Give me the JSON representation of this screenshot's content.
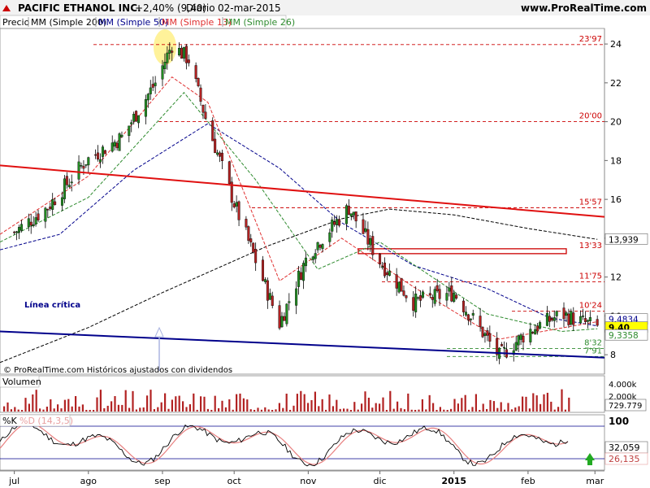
{
  "header": {
    "ticker": "PACIFIC ETHANOL INC.",
    "change": "+2,40% (9,40)",
    "period": "Diario",
    "date": "02-mar-2015",
    "site": "www.ProRealTime.com"
  },
  "legend": {
    "price": "Precio",
    "ma200": "MM (Simple 200)",
    "ma50": "MM (Simple 50)",
    "ma13": "MM (Simple 13)",
    "ma26": "MM (Simple 26)"
  },
  "colors": {
    "price_up": "#228b22",
    "price_down": "#b22222",
    "ma200": "#000000",
    "ma50": "#00008b",
    "ma13": "#e03030",
    "ma26": "#2e8b2e",
    "support_line": "#00008b",
    "resistance_line": "#e01010",
    "level_red": "#cc0000",
    "level_green": "#2e8b2e",
    "volume": "#b22222",
    "highlight": "#fff29a"
  },
  "footer": {
    "copyright": "© ProRealTime.com Históricos ajustados con dividendos"
  },
  "annotations": {
    "critical_line": "Línea crítica"
  },
  "volume_panel": {
    "title": "Volumen",
    "axis_labels": [
      "4.000k",
      "2.000k"
    ],
    "last_value": "729.779"
  },
  "stoch_panel": {
    "k_label": "%K",
    "d_label": "%D (14,3,5)",
    "axis_top": "100",
    "k_value": "32,059",
    "d_value": "26,135"
  },
  "chart_data": {
    "type": "candlestick",
    "y_axis": {
      "ticks": [
        8,
        10,
        12,
        14,
        16,
        18,
        20,
        22,
        24
      ],
      "tick_labels": [
        "8",
        "10",
        "12",
        "14",
        "16",
        "18",
        "20",
        "22",
        "24"
      ],
      "range": [
        7.0,
        24.8
      ]
    },
    "x_axis": {
      "labels": [
        "jul",
        "ago",
        "sep",
        "oct",
        "nov",
        "dic",
        "2015",
        "feb",
        "mar"
      ],
      "range": [
        "2014-06-25",
        "2015-03-05"
      ]
    },
    "levels": [
      {
        "label": "23'97",
        "value": 23.97,
        "color": "red"
      },
      {
        "label": "20'00",
        "value": 20.0,
        "color": "red"
      },
      {
        "label": "15'57",
        "value": 15.57,
        "color": "red"
      },
      {
        "label": "13'33",
        "value": 13.33,
        "color": "red"
      },
      {
        "label": "11'75",
        "value": 11.75,
        "color": "red"
      },
      {
        "label": "10'24",
        "value": 10.24,
        "color": "red"
      },
      {
        "label": "8'32",
        "value": 8.32,
        "color": "green"
      },
      {
        "label": "7'91",
        "value": 7.91,
        "color": "green"
      }
    ],
    "right_labels": [
      {
        "label": "13,939",
        "value": 13.939
      },
      {
        "label": "9,4834",
        "value": 9.4834
      },
      {
        "label": "9,40",
        "value": 9.4
      },
      {
        "label": "9,3358",
        "value": 9.3358
      }
    ],
    "prices": [
      {
        "date": "2014-07-01",
        "close": 14.3
      },
      {
        "date": "2014-07-15",
        "close": 15.6
      },
      {
        "date": "2014-07-31",
        "close": 18.0
      },
      {
        "date": "2014-08-15",
        "close": 19.2
      },
      {
        "date": "2014-08-29",
        "close": 22.0
      },
      {
        "date": "2014-09-05",
        "close": 23.97
      },
      {
        "date": "2014-09-12",
        "close": 23.2
      },
      {
        "date": "2014-09-19",
        "close": 20.2
      },
      {
        "date": "2014-10-01",
        "close": 15.8
      },
      {
        "date": "2014-10-15",
        "close": 11.2
      },
      {
        "date": "2014-10-20",
        "close": 9.6
      },
      {
        "date": "2014-11-01",
        "close": 13.2
      },
      {
        "date": "2014-11-18",
        "close": 15.57
      },
      {
        "date": "2014-12-01",
        "close": 12.8
      },
      {
        "date": "2014-12-15",
        "close": 10.7
      },
      {
        "date": "2015-01-01",
        "close": 11.2
      },
      {
        "date": "2015-01-15",
        "close": 8.8
      },
      {
        "date": "2015-01-20",
        "close": 7.91
      },
      {
        "date": "2015-02-01",
        "close": 9.2
      },
      {
        "date": "2015-02-15",
        "close": 10.1
      },
      {
        "date": "2015-03-02",
        "close": 9.4
      }
    ],
    "ma200": [
      {
        "date": "2014-06-25",
        "value": 7.6
      },
      {
        "date": "2014-08-01",
        "value": 9.4
      },
      {
        "date": "2014-09-01",
        "value": 11.2
      },
      {
        "date": "2014-10-15",
        "value": 13.6
      },
      {
        "date": "2014-11-15",
        "value": 15.0
      },
      {
        "date": "2014-12-05",
        "value": 15.5
      },
      {
        "date": "2015-01-01",
        "value": 15.2
      },
      {
        "date": "2015-02-01",
        "value": 14.5
      },
      {
        "date": "2015-03-02",
        "value": 13.939
      }
    ],
    "ma50": [
      {
        "date": "2014-06-25",
        "value": 13.4
      },
      {
        "date": "2014-07-20",
        "value": 14.2
      },
      {
        "date": "2014-08-20",
        "value": 17.5
      },
      {
        "date": "2014-09-20",
        "value": 19.9
      },
      {
        "date": "2014-10-20",
        "value": 17.6
      },
      {
        "date": "2014-11-15",
        "value": 14.8
      },
      {
        "date": "2014-12-15",
        "value": 12.6
      },
      {
        "date": "2015-01-15",
        "value": 11.4
      },
      {
        "date": "2015-02-10",
        "value": 9.9
      },
      {
        "date": "2015-03-02",
        "value": 9.4834
      }
    ],
    "ma13": [
      {
        "date": "2014-06-25",
        "value": 14.2
      },
      {
        "date": "2014-08-01",
        "value": 17.2
      },
      {
        "date": "2014-09-05",
        "value": 22.3
      },
      {
        "date": "2014-09-20",
        "value": 21.0
      },
      {
        "date": "2014-10-20",
        "value": 11.8
      },
      {
        "date": "2014-11-15",
        "value": 14.0
      },
      {
        "date": "2014-12-15",
        "value": 11.5
      },
      {
        "date": "2015-01-20",
        "value": 8.8
      },
      {
        "date": "2015-03-02",
        "value": 9.7
      }
    ],
    "ma26": [
      {
        "date": "2014-06-25",
        "value": 13.8
      },
      {
        "date": "2014-08-01",
        "value": 16.1
      },
      {
        "date": "2014-09-10",
        "value": 21.5
      },
      {
        "date": "2014-10-10",
        "value": 17.0
      },
      {
        "date": "2014-11-05",
        "value": 12.4
      },
      {
        "date": "2014-12-01",
        "value": 13.8
      },
      {
        "date": "2015-01-15",
        "value": 10.1
      },
      {
        "date": "2015-02-15",
        "value": 9.2
      },
      {
        "date": "2015-03-02",
        "value": 9.3358
      }
    ],
    "trendlines": [
      {
        "name": "resistance",
        "start": {
          "date": "2014-06-25",
          "value": 17.75
        },
        "end": {
          "date": "2015-03-05",
          "value": 15.1
        }
      },
      {
        "name": "support",
        "start": {
          "date": "2014-06-25",
          "value": 9.2
        },
        "end": {
          "date": "2015-03-05",
          "value": 7.85
        }
      }
    ],
    "stochastic": {
      "k_last": 32.059,
      "d_last": 26.135
    }
  }
}
